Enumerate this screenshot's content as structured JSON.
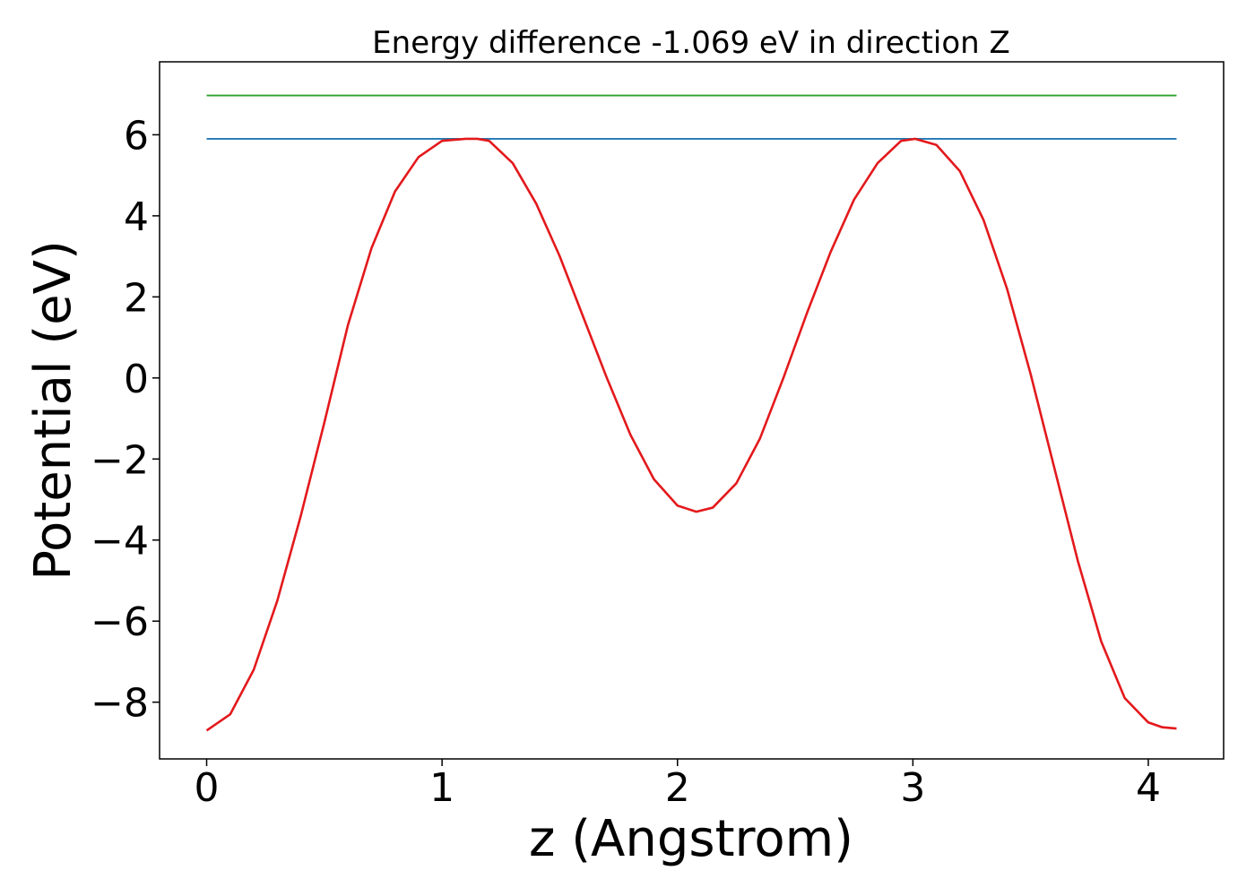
{
  "chart_data": {
    "type": "line",
    "title": "Energy difference -1.069 eV in direction Z",
    "xlabel": "z (Angstrom)",
    "ylabel": "Potential (eV)",
    "xlim": [
      -0.2,
      4.32
    ],
    "ylim": [
      -9.4,
      7.8
    ],
    "xticks": [
      0,
      1,
      2,
      3,
      4
    ],
    "xtick_labels": [
      "0",
      "1",
      "2",
      "3",
      "4"
    ],
    "yticks": [
      -8,
      -6,
      -4,
      -2,
      0,
      2,
      4,
      6
    ],
    "ytick_labels": [
      "−8",
      "−6",
      "−4",
      "−2",
      "0",
      "2",
      "4",
      "6"
    ],
    "grid": false,
    "series": [
      {
        "color": "#2ca02c",
        "x": [
          0,
          4.12
        ],
        "y": [
          6.97,
          6.97
        ]
      },
      {
        "color": "#1f77b4",
        "x": [
          0,
          4.12
        ],
        "y": [
          5.9,
          5.9
        ]
      },
      {
        "color": "#e3191c",
        "x": [
          0,
          0.1,
          0.2,
          0.3,
          0.4,
          0.5,
          0.6,
          0.7,
          0.8,
          0.9,
          1.0,
          1.1,
          1.15,
          1.2,
          1.3,
          1.4,
          1.5,
          1.6,
          1.7,
          1.8,
          1.9,
          2.0,
          2.08,
          2.15,
          2.25,
          2.35,
          2.45,
          2.55,
          2.65,
          2.75,
          2.85,
          2.95,
          3.01,
          3.1,
          3.2,
          3.3,
          3.4,
          3.5,
          3.6,
          3.7,
          3.8,
          3.9,
          4.0,
          4.06,
          4.12
        ],
        "y": [
          -8.7,
          -8.3,
          -7.2,
          -5.5,
          -3.4,
          -1.1,
          1.3,
          3.2,
          4.6,
          5.45,
          5.85,
          5.9,
          5.9,
          5.85,
          5.3,
          4.3,
          3.0,
          1.5,
          0.0,
          -1.4,
          -2.5,
          -3.15,
          -3.3,
          -3.2,
          -2.6,
          -1.5,
          0.0,
          1.6,
          3.1,
          4.4,
          5.3,
          5.85,
          5.9,
          5.75,
          5.1,
          3.9,
          2.2,
          0.1,
          -2.2,
          -4.5,
          -6.5,
          -7.9,
          -8.5,
          -8.62,
          -8.65
        ]
      }
    ]
  }
}
